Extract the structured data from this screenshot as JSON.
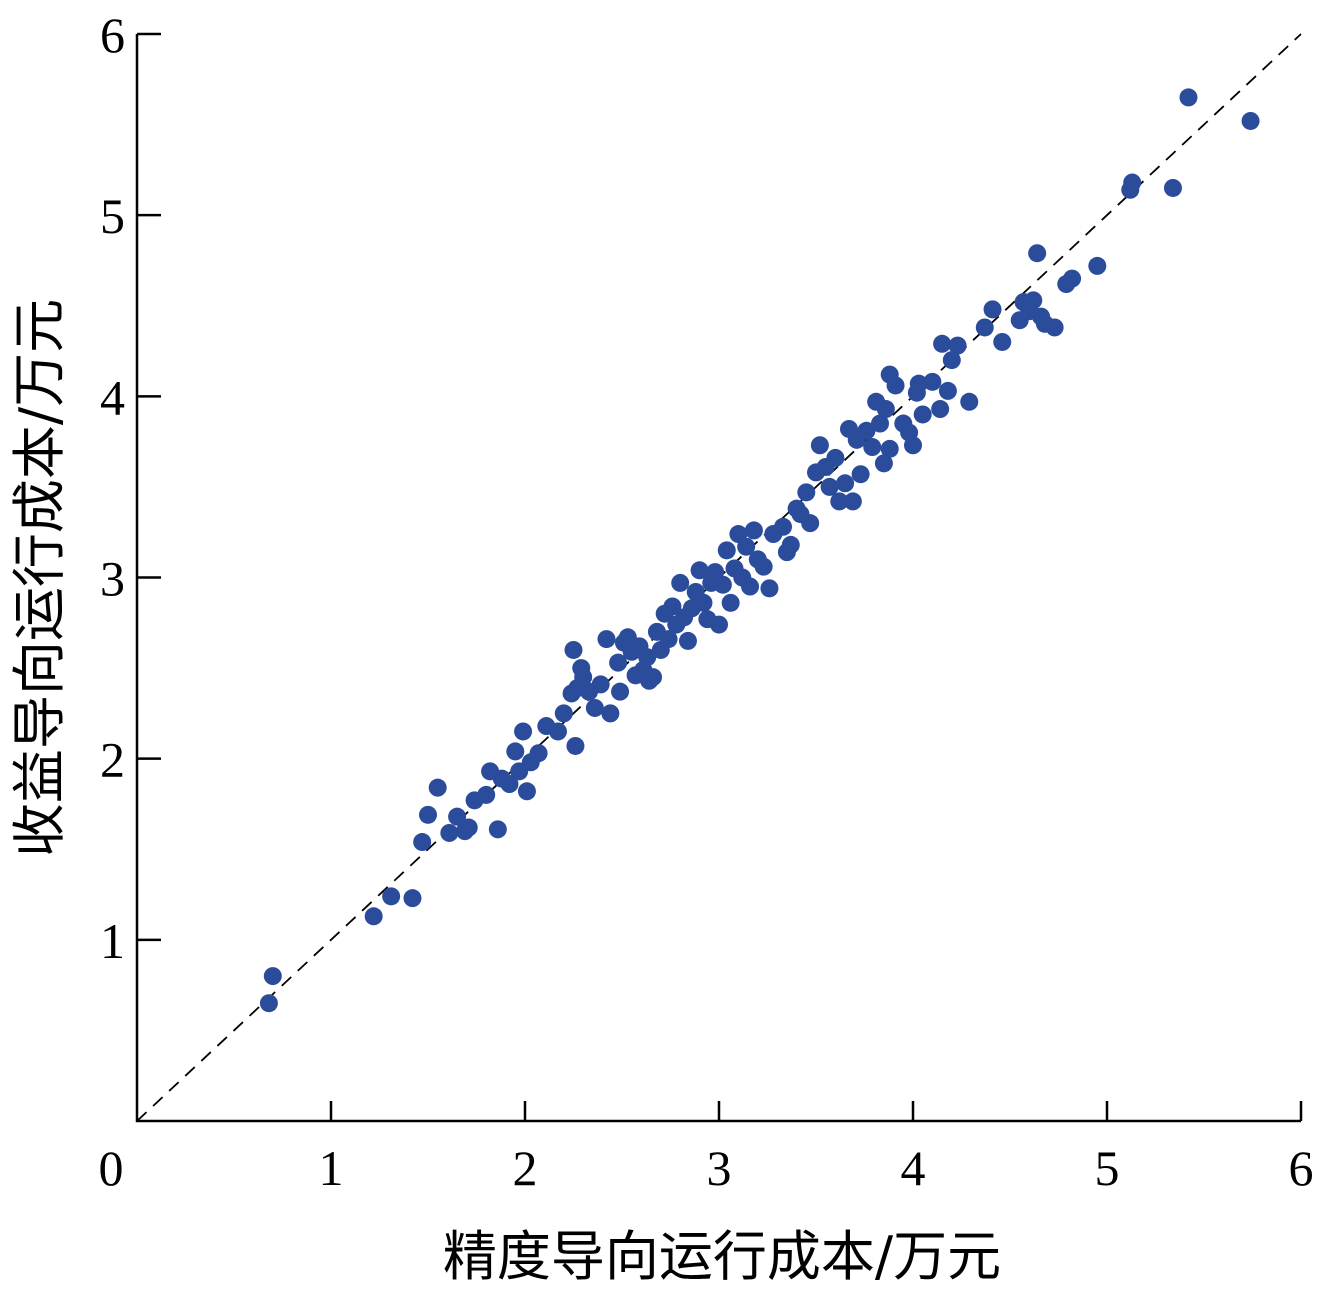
{
  "chart_data": {
    "type": "scatter",
    "title": "",
    "xlabel": "精度导向运行成本/万元",
    "ylabel": "收益导向运行成本/万元",
    "xlim": [
      0,
      6
    ],
    "ylim": [
      0,
      6
    ],
    "x_ticks": [
      "0",
      "1",
      "2",
      "3",
      "4",
      "5",
      "6"
    ],
    "y_ticks": [
      "1",
      "2",
      "3",
      "4",
      "5",
      "6"
    ],
    "grid": false,
    "reference_line": {
      "style": "dashed",
      "from": [
        0,
        0
      ],
      "to": [
        6,
        6
      ]
    },
    "series": [
      {
        "color": "#2B4C9B",
        "points": [
          [
            0.68,
            0.65
          ],
          [
            0.7,
            0.8
          ],
          [
            1.22,
            1.13
          ],
          [
            1.31,
            1.24
          ],
          [
            1.42,
            1.23
          ],
          [
            1.47,
            1.54
          ],
          [
            1.5,
            1.69
          ],
          [
            1.55,
            1.84
          ],
          [
            1.61,
            1.59
          ],
          [
            1.65,
            1.68
          ],
          [
            1.69,
            1.6
          ],
          [
            1.71,
            1.62
          ],
          [
            1.74,
            1.77
          ],
          [
            1.8,
            1.8
          ],
          [
            1.82,
            1.93
          ],
          [
            1.86,
            1.61
          ],
          [
            1.88,
            1.89
          ],
          [
            1.92,
            1.86
          ],
          [
            1.95,
            2.04
          ],
          [
            1.97,
            1.93
          ],
          [
            1.99,
            2.15
          ],
          [
            2.01,
            1.82
          ],
          [
            2.03,
            1.98
          ],
          [
            2.07,
            2.03
          ],
          [
            2.11,
            2.18
          ],
          [
            2.17,
            2.15
          ],
          [
            2.2,
            2.25
          ],
          [
            2.24,
            2.36
          ],
          [
            2.25,
            2.6
          ],
          [
            2.26,
            2.07
          ],
          [
            2.27,
            2.39
          ],
          [
            2.29,
            2.5
          ],
          [
            2.3,
            2.45
          ],
          [
            2.33,
            2.37
          ],
          [
            2.36,
            2.28
          ],
          [
            2.39,
            2.41
          ],
          [
            2.42,
            2.66
          ],
          [
            2.44,
            2.25
          ],
          [
            2.48,
            2.53
          ],
          [
            2.49,
            2.37
          ],
          [
            2.51,
            2.64
          ],
          [
            2.53,
            2.67
          ],
          [
            2.55,
            2.59
          ],
          [
            2.57,
            2.46
          ],
          [
            2.59,
            2.62
          ],
          [
            2.61,
            2.49
          ],
          [
            2.63,
            2.56
          ],
          [
            2.64,
            2.43
          ],
          [
            2.66,
            2.45
          ],
          [
            2.68,
            2.7
          ],
          [
            2.7,
            2.6
          ],
          [
            2.72,
            2.8
          ],
          [
            2.74,
            2.66
          ],
          [
            2.76,
            2.84
          ],
          [
            2.78,
            2.74
          ],
          [
            2.8,
            2.97
          ],
          [
            2.82,
            2.78
          ],
          [
            2.84,
            2.65
          ],
          [
            2.86,
            2.83
          ],
          [
            2.88,
            2.92
          ],
          [
            2.9,
            3.04
          ],
          [
            2.92,
            2.86
          ],
          [
            2.94,
            2.77
          ],
          [
            2.96,
            2.97
          ],
          [
            2.98,
            3.03
          ],
          [
            3.0,
            2.74
          ],
          [
            3.02,
            2.96
          ],
          [
            3.04,
            3.15
          ],
          [
            3.06,
            2.86
          ],
          [
            3.08,
            3.05
          ],
          [
            3.1,
            3.24
          ],
          [
            3.12,
            3.0
          ],
          [
            3.14,
            3.17
          ],
          [
            3.16,
            2.95
          ],
          [
            3.18,
            3.26
          ],
          [
            3.2,
            3.1
          ],
          [
            3.23,
            3.06
          ],
          [
            3.26,
            2.94
          ],
          [
            3.28,
            3.24
          ],
          [
            3.33,
            3.28
          ],
          [
            3.35,
            3.14
          ],
          [
            3.37,
            3.18
          ],
          [
            3.4,
            3.38
          ],
          [
            3.42,
            3.35
          ],
          [
            3.45,
            3.47
          ],
          [
            3.47,
            3.3
          ],
          [
            3.5,
            3.58
          ],
          [
            3.52,
            3.73
          ],
          [
            3.55,
            3.61
          ],
          [
            3.57,
            3.5
          ],
          [
            3.6,
            3.66
          ],
          [
            3.62,
            3.42
          ],
          [
            3.65,
            3.52
          ],
          [
            3.67,
            3.82
          ],
          [
            3.69,
            3.42
          ],
          [
            3.71,
            3.76
          ],
          [
            3.73,
            3.57
          ],
          [
            3.76,
            3.81
          ],
          [
            3.79,
            3.72
          ],
          [
            3.81,
            3.97
          ],
          [
            3.83,
            3.85
          ],
          [
            3.85,
            3.63
          ],
          [
            3.86,
            3.93
          ],
          [
            3.88,
            3.71
          ],
          [
            3.88,
            4.12
          ],
          [
            3.91,
            4.06
          ],
          [
            3.95,
            3.85
          ],
          [
            3.98,
            3.8
          ],
          [
            4.0,
            3.73
          ],
          [
            4.02,
            4.02
          ],
          [
            4.03,
            4.07
          ],
          [
            4.05,
            3.9
          ],
          [
            4.1,
            4.08
          ],
          [
            4.14,
            3.93
          ],
          [
            4.15,
            4.29
          ],
          [
            4.18,
            4.03
          ],
          [
            4.2,
            4.2
          ],
          [
            4.23,
            4.28
          ],
          [
            4.29,
            3.97
          ],
          [
            4.37,
            4.38
          ],
          [
            4.41,
            4.48
          ],
          [
            4.46,
            4.3
          ],
          [
            4.55,
            4.42
          ],
          [
            4.57,
            4.52
          ],
          [
            4.6,
            4.47
          ],
          [
            4.62,
            4.53
          ],
          [
            4.64,
            4.79
          ],
          [
            4.66,
            4.44
          ],
          [
            4.68,
            4.4
          ],
          [
            4.73,
            4.38
          ],
          [
            4.79,
            4.62
          ],
          [
            4.82,
            4.65
          ],
          [
            4.95,
            4.72
          ],
          [
            5.12,
            5.14
          ],
          [
            5.13,
            5.18
          ],
          [
            5.34,
            5.15
          ],
          [
            5.42,
            5.65
          ],
          [
            5.74,
            5.52
          ]
        ]
      }
    ]
  }
}
